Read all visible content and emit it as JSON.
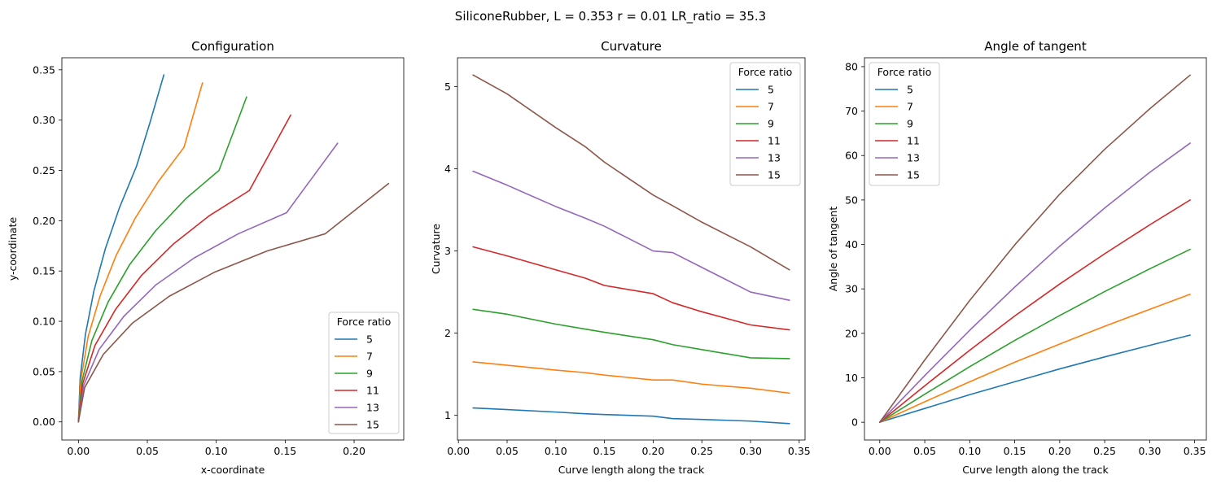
{
  "suptitle": "SiliconeRubber, L = 0.353 r = 0.01 LR_ratio = 35.3",
  "legend_title": "Force ratio",
  "colors": [
    "#1f77b4",
    "#ff7f0e",
    "#2ca02c",
    "#d62728",
    "#9467bd",
    "#8c564b"
  ],
  "chart_data": [
    {
      "type": "line",
      "title": "Configuration",
      "xlabel": "x-coordinate",
      "ylabel": "y-coordinate",
      "xlim": [
        -0.012,
        0.236
      ],
      "ylim": [
        -0.018,
        0.362
      ],
      "xticks": [
        "0.00",
        "0.05",
        "0.10",
        "0.15",
        "0.20"
      ],
      "xtick_values": [
        0,
        0.05,
        0.1,
        0.15,
        0.2
      ],
      "yticks": [
        "0.00",
        "0.05",
        "0.10",
        "0.15",
        "0.20",
        "0.25",
        "0.30",
        "0.35"
      ],
      "ytick_values": [
        0,
        0.05,
        0.1,
        0.15,
        0.2,
        0.25,
        0.3,
        0.35
      ],
      "legend_position": "lower right",
      "grid": false,
      "series": [
        {
          "name": "5",
          "x": [
            0,
            0.0013,
            0.0051,
            0.0112,
            0.0195,
            0.0298,
            0.0421,
            0.0518,
            0.062
          ],
          "y": [
            0,
            0.044,
            0.087,
            0.13,
            0.172,
            0.213,
            0.254,
            0.297,
            0.345
          ]
        },
        {
          "name": "7",
          "x": [
            0,
            0.0018,
            0.0071,
            0.0157,
            0.0272,
            0.0414,
            0.058,
            0.0766,
            0.09
          ],
          "y": [
            0,
            0.042,
            0.085,
            0.125,
            0.165,
            0.203,
            0.239,
            0.273,
            0.337
          ]
        },
        {
          "name": "9",
          "x": [
            0,
            0.0025,
            0.0098,
            0.0215,
            0.037,
            0.056,
            0.078,
            0.102,
            0.122
          ],
          "y": [
            0,
            0.04,
            0.081,
            0.119,
            0.156,
            0.19,
            0.222,
            0.25,
            0.323
          ]
        },
        {
          "name": "11",
          "x": [
            0,
            0.0031,
            0.012,
            0.027,
            0.046,
            0.069,
            0.095,
            0.124,
            0.154
          ],
          "y": [
            0,
            0.038,
            0.076,
            0.112,
            0.146,
            0.177,
            0.205,
            0.23,
            0.305
          ]
        },
        {
          "name": "13",
          "x": [
            0,
            0.0038,
            0.015,
            0.033,
            0.056,
            0.084,
            0.116,
            0.151,
            0.188
          ],
          "y": [
            0,
            0.036,
            0.072,
            0.105,
            0.136,
            0.163,
            0.187,
            0.208,
            0.277
          ]
        },
        {
          "name": "15",
          "x": [
            0,
            0.0045,
            0.018,
            0.039,
            0.066,
            0.099,
            0.137,
            0.179,
            0.225
          ],
          "y": [
            0,
            0.034,
            0.067,
            0.098,
            0.125,
            0.149,
            0.17,
            0.187,
            0.237
          ]
        }
      ]
    },
    {
      "type": "line",
      "title": "Curvature",
      "xlabel": "Curve length along the track",
      "ylabel": "Curvature",
      "xlim": [
        -0.001,
        0.356
      ],
      "ylim": [
        0.7,
        5.35
      ],
      "xticks": [
        "0.00",
        "0.05",
        "0.10",
        "0.15",
        "0.20",
        "0.25",
        "0.30",
        "0.35"
      ],
      "xtick_values": [
        0,
        0.05,
        0.1,
        0.15,
        0.2,
        0.25,
        0.3,
        0.35
      ],
      "yticks": [
        "1",
        "2",
        "3",
        "4",
        "5"
      ],
      "ytick_values": [
        1,
        2,
        3,
        4,
        5
      ],
      "legend_position": "upper right",
      "grid": false,
      "series": [
        {
          "name": "5",
          "x": [
            0.015,
            0.05,
            0.1,
            0.13,
            0.15,
            0.2,
            0.22,
            0.25,
            0.3,
            0.34
          ],
          "y": [
            1.09,
            1.07,
            1.04,
            1.02,
            1.01,
            0.99,
            0.96,
            0.95,
            0.93,
            0.9
          ]
        },
        {
          "name": "7",
          "x": [
            0.015,
            0.05,
            0.1,
            0.13,
            0.15,
            0.2,
            0.22,
            0.25,
            0.3,
            0.34
          ],
          "y": [
            1.65,
            1.61,
            1.55,
            1.52,
            1.49,
            1.43,
            1.43,
            1.38,
            1.33,
            1.27
          ]
        },
        {
          "name": "9",
          "x": [
            0.015,
            0.05,
            0.1,
            0.13,
            0.15,
            0.2,
            0.22,
            0.25,
            0.3,
            0.34
          ],
          "y": [
            2.29,
            2.23,
            2.11,
            2.05,
            2.01,
            1.92,
            1.86,
            1.8,
            1.7,
            1.69
          ]
        },
        {
          "name": "11",
          "x": [
            0.015,
            0.05,
            0.1,
            0.13,
            0.15,
            0.2,
            0.22,
            0.25,
            0.3,
            0.34
          ],
          "y": [
            3.05,
            2.94,
            2.77,
            2.67,
            2.58,
            2.48,
            2.37,
            2.26,
            2.1,
            2.04
          ]
        },
        {
          "name": "13",
          "x": [
            0.015,
            0.05,
            0.1,
            0.13,
            0.15,
            0.2,
            0.22,
            0.25,
            0.3,
            0.34
          ],
          "y": [
            3.97,
            3.8,
            3.54,
            3.4,
            3.3,
            3.0,
            2.98,
            2.8,
            2.5,
            2.4
          ]
        },
        {
          "name": "15",
          "x": [
            0.015,
            0.05,
            0.1,
            0.13,
            0.15,
            0.2,
            0.22,
            0.25,
            0.3,
            0.34
          ],
          "y": [
            5.14,
            4.91,
            4.5,
            4.27,
            4.08,
            3.68,
            3.55,
            3.35,
            3.05,
            2.77
          ]
        }
      ]
    },
    {
      "type": "line",
      "title": "Angle of tangent",
      "xlabel": "Curve length along the track",
      "ylabel": "Angle of tangent",
      "xlim": [
        -0.017,
        0.363
      ],
      "ylim": [
        -4,
        82
      ],
      "xticks": [
        "0.00",
        "0.05",
        "0.10",
        "0.15",
        "0.20",
        "0.25",
        "0.30",
        "0.35"
      ],
      "xtick_values": [
        0,
        0.05,
        0.1,
        0.15,
        0.2,
        0.25,
        0.3,
        0.35
      ],
      "yticks": [
        "0",
        "10",
        "20",
        "30",
        "40",
        "50",
        "60",
        "70",
        "80"
      ],
      "ytick_values": [
        0,
        10,
        20,
        30,
        40,
        50,
        60,
        70,
        80
      ],
      "legend_position": "upper left",
      "grid": false,
      "series": [
        {
          "name": "5",
          "x": [
            0,
            0.05,
            0.1,
            0.15,
            0.2,
            0.25,
            0.3,
            0.345
          ],
          "y": [
            0,
            3.1,
            6.2,
            9.1,
            12.0,
            14.7,
            17.3,
            19.6
          ]
        },
        {
          "name": "7",
          "x": [
            0,
            0.05,
            0.1,
            0.15,
            0.2,
            0.25,
            0.3,
            0.345
          ],
          "y": [
            0,
            4.6,
            9.1,
            13.5,
            17.6,
            21.6,
            25.4,
            28.8
          ]
        },
        {
          "name": "9",
          "x": [
            0,
            0.05,
            0.1,
            0.15,
            0.2,
            0.25,
            0.3,
            0.345
          ],
          "y": [
            0,
            6.3,
            12.5,
            18.4,
            24.0,
            29.4,
            34.5,
            38.9
          ]
        },
        {
          "name": "11",
          "x": [
            0,
            0.05,
            0.1,
            0.15,
            0.2,
            0.25,
            0.3,
            0.345
          ],
          "y": [
            0,
            8.2,
            16.2,
            23.9,
            31.1,
            37.9,
            44.4,
            50.0
          ]
        },
        {
          "name": "13",
          "x": [
            0,
            0.05,
            0.1,
            0.15,
            0.2,
            0.25,
            0.3,
            0.345
          ],
          "y": [
            0,
            10.5,
            20.7,
            30.4,
            39.6,
            48.2,
            56.2,
            62.8
          ]
        },
        {
          "name": "15",
          "x": [
            0,
            0.05,
            0.1,
            0.15,
            0.2,
            0.25,
            0.3,
            0.345
          ],
          "y": [
            0,
            14.0,
            27.4,
            39.9,
            51.3,
            61.4,
            70.5,
            78.1
          ]
        }
      ]
    }
  ]
}
